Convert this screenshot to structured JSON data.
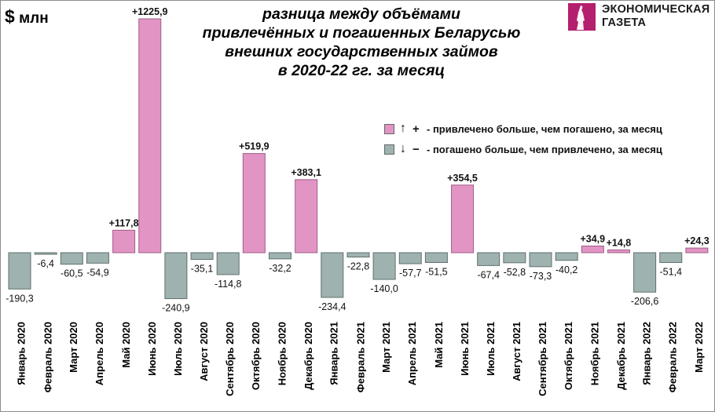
{
  "header": {
    "unit_symbol": "$",
    "unit_label": "млн",
    "title_lines": [
      "разница между объёмами",
      "привлечённых и погашенных Беларусью",
      "внешних государственных займов",
      "в 2020-22 гг. за месяц"
    ]
  },
  "logo": {
    "line1": "ЭКОНОМИЧЕСКАЯ",
    "line2": "ГАЗЕТА",
    "color": "#b41f6e"
  },
  "legend": {
    "items": [
      {
        "arrow": "↑",
        "sign": "+",
        "label": "- привлечено больше, чем погашено, за месяц",
        "color": "#e295c5"
      },
      {
        "arrow": "↓",
        "sign": "−",
        "label": "- погашено больше, чем привлечено, за месяц",
        "color": "#9eb3b0"
      }
    ]
  },
  "colors": {
    "positive_fill": "#e295c5",
    "positive_stroke": "#a05c86",
    "negative_fill": "#9eb3b0",
    "negative_stroke": "#5f706d"
  },
  "chart_data": {
    "type": "bar",
    "title": "разница между объёмами привлечённых и погашенных Беларусью внешних государственных займов в 2020-22 гг. за месяц",
    "xlabel": "",
    "ylabel": "$ млн",
    "grid": false,
    "legend_position": "top-right",
    "categories": [
      "Январь 2020",
      "Февраль 2020",
      "Март 2020",
      "Апрель 2020",
      "Май 2020",
      "Июнь 2020",
      "Июль 2020",
      "Август 2020",
      "Сентябрь 2020",
      "Октябрь 2020",
      "Ноябрь 2020",
      "Декабрь 2020",
      "Январь 2021",
      "Февраль 2021",
      "Март 2021",
      "Апрель 2021",
      "Май 2021",
      "Июнь 2021",
      "Июль 2021",
      "Август 2021",
      "Сентябрь 2021",
      "Октябрь 2021",
      "Ноябрь 2021",
      "Декабрь 2021",
      "Январь 2022",
      "Февраль 2022",
      "Март 2022"
    ],
    "values": [
      -190.3,
      -6.4,
      -60.5,
      -54.9,
      117.8,
      1225.9,
      -240.9,
      -35.1,
      -114.8,
      519.9,
      -32.2,
      383.1,
      -234.4,
      -22.8,
      -140.0,
      -57.7,
      -51.5,
      354.5,
      -67.4,
      -52.8,
      -73.3,
      -40.2,
      34.9,
      14.8,
      -206.6,
      -51.4,
      24.3
    ],
    "labels": [
      "-190,3",
      "-6,4",
      "-60,5",
      "-54,9",
      "+117,8",
      "+1225,9",
      "-240,9",
      "-35,1",
      "-114,8",
      "+519,9",
      "-32,2",
      "+383,1",
      "-234,4",
      "-22,8",
      "-140,0",
      "-57,7",
      "-51,5",
      "+354,5",
      "-67,4",
      "-52,8",
      "-73,3",
      "-40,2",
      "+34,9",
      "+14,8",
      "-206,6",
      "-51,4",
      "+24,3"
    ],
    "ylim": [
      -260,
      1260
    ]
  }
}
